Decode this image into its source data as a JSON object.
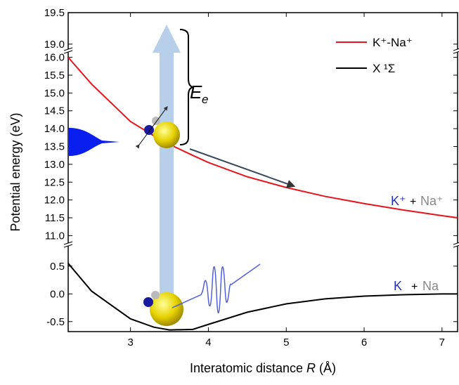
{
  "chart_data": {
    "type": "line",
    "xlabel": {
      "text": "Interatomic distance ",
      "var": "R",
      "unit": " (Å)"
    },
    "ylabel": "Potential energy (eV)",
    "xlim": [
      2.2,
      7.2
    ],
    "xticks": [
      3,
      4,
      5,
      6,
      7
    ],
    "panels": [
      {
        "ylim": [
          18.92,
          19.5
        ],
        "yticks": [
          {
            "value": 19,
            "label": "19.0"
          },
          {
            "value": 19.5,
            "label": "19.5"
          }
        ]
      },
      {
        "ylim": [
          10.85,
          16.15
        ],
        "yticks": [
          {
            "value": 11,
            "label": "11.0"
          },
          {
            "value": 11.5,
            "label": "11.5"
          },
          {
            "value": 12,
            "label": "12.0"
          },
          {
            "value": 12.5,
            "label": "12.5"
          },
          {
            "value": 13,
            "label": "13.0"
          },
          {
            "value": 13.5,
            "label": "13.5"
          },
          {
            "value": 14,
            "label": "14.0"
          },
          {
            "value": 14.5,
            "label": "14.5"
          },
          {
            "value": 15,
            "label": "15.0"
          },
          {
            "value": 15.5,
            "label": "15.5"
          },
          {
            "value": 16,
            "label": "16.0"
          }
        ]
      },
      {
        "ylim": [
          -0.68,
          0.84
        ],
        "yticks": [
          {
            "value": -0.5,
            "label": "-0.5"
          },
          {
            "value": 0,
            "label": "0.0"
          },
          {
            "value": 0.5,
            "label": "0.5"
          }
        ]
      }
    ],
    "x": [
      2.2,
      2.5,
      3,
      3.3,
      3.5,
      3.8,
      4,
      4.5,
      5,
      5.5,
      6,
      6.5,
      7,
      7.2
    ],
    "series": [
      {
        "name": "K⁺-Na⁺",
        "color": "#e8141c",
        "panel": 1,
        "values": [
          16.0,
          15.25,
          14.2,
          13.8,
          13.56,
          13.25,
          13.05,
          12.65,
          12.35,
          12.1,
          11.9,
          11.72,
          11.56,
          11.5
        ]
      },
      {
        "name": "X ¹Σ",
        "color": "#000000",
        "panel": 2,
        "values": [
          0.55,
          0.05,
          -0.45,
          -0.6,
          -0.65,
          -0.64,
          -0.55,
          -0.33,
          -0.18,
          -0.09,
          -0.04,
          -0.015,
          0.0,
          0.0
        ]
      }
    ],
    "energy_label": {
      "main": "E",
      "sub": "e"
    },
    "ion_label": {
      "k": "K⁺",
      "plus": "+",
      "na": "Na⁺"
    },
    "neutral_label": {
      "k": "K",
      "plus": "+",
      "na": "Na"
    }
  }
}
